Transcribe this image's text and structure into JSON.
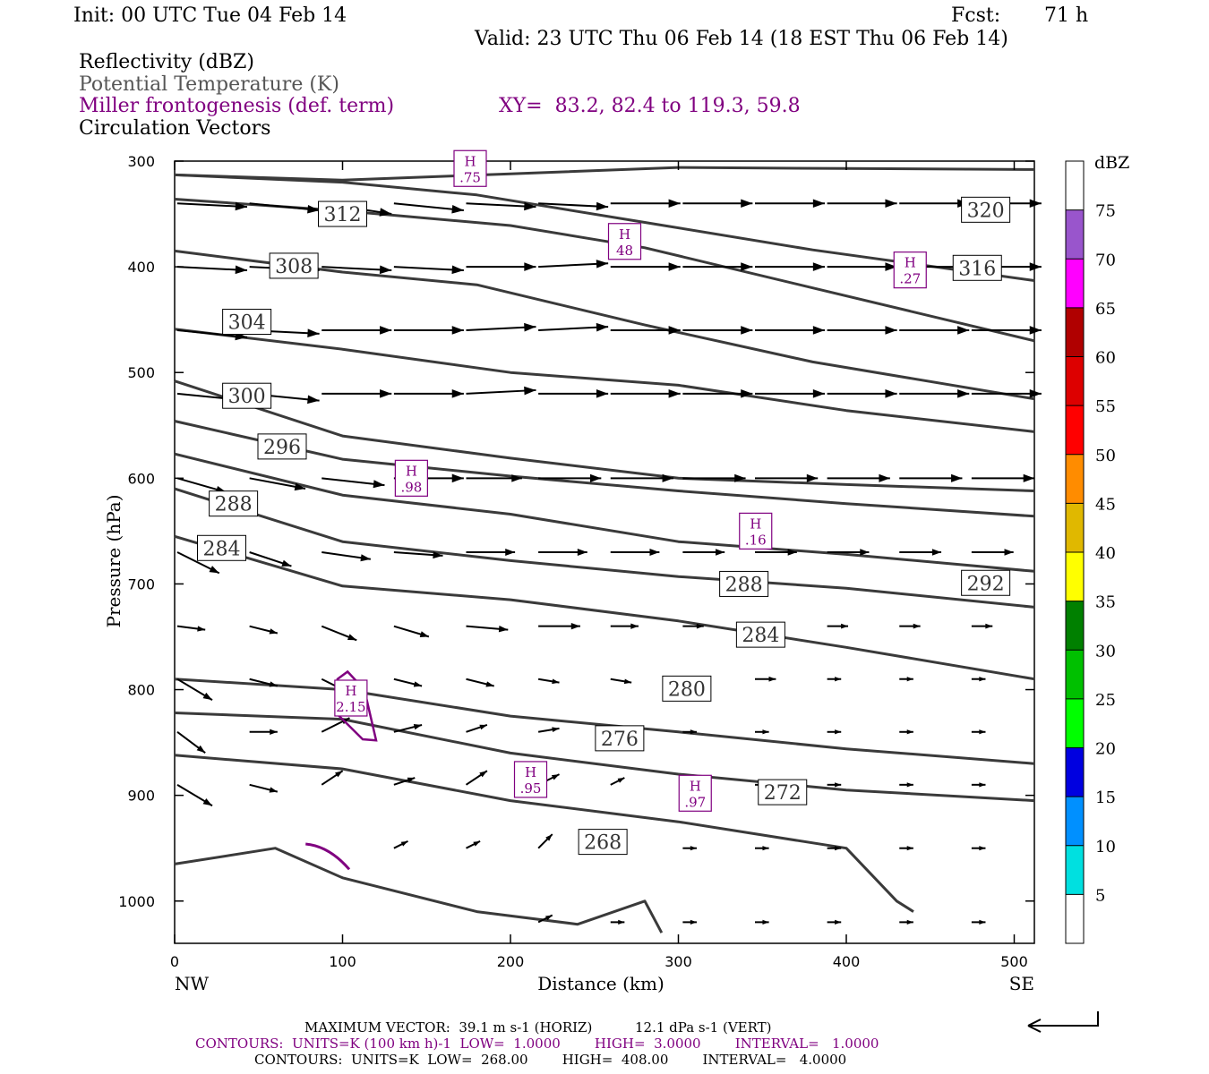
{
  "header": {
    "init": "Init: 00 UTC Tue 04 Feb 14",
    "fcst_label": "Fcst:",
    "fcst_value": "71 h",
    "valid": "Valid: 23 UTC Thu 06 Feb 14 (18 EST Thu 06 Feb 14)"
  },
  "fields": {
    "reflectivity": "Reflectivity (dBZ)",
    "theta": "Potential Temperature (K)",
    "frontogenesis": "Miller frontogenesis (def. term)",
    "xy": "XY=  83.2, 82.4 to 119.3, 59.8",
    "vectors": "Circulation Vectors"
  },
  "chart_data": {
    "type": "cross-section",
    "xlabel": "Distance (km)",
    "ylabel": "Pressure (hPa)",
    "xlim": [
      0,
      512
    ],
    "ylim": [
      1040,
      300
    ],
    "x_ticks": [
      "0",
      "100",
      "200",
      "300",
      "400",
      "500"
    ],
    "y_ticks": [
      "300",
      "400",
      "500",
      "600",
      "700",
      "800",
      "900",
      "1000"
    ],
    "x_end_labels": {
      "left": "NW",
      "right": "SE"
    },
    "colorbar": {
      "title": "dBZ",
      "levels": [
        "5",
        "10",
        "15",
        "20",
        "25",
        "30",
        "35",
        "40",
        "45",
        "50",
        "55",
        "60",
        "65",
        "70",
        "75"
      ],
      "colors": [
        "#ffffff",
        "#00e0e0",
        "#0090ff",
        "#0000e0",
        "#00ff00",
        "#00c000",
        "#008000",
        "#ffff00",
        "#e0b800",
        "#ff8c00",
        "#ff0000",
        "#dd0000",
        "#b00000",
        "#ff00ff",
        "#9955cc",
        "#ffffff"
      ]
    },
    "theta_contours": [
      {
        "label": "320",
        "label_x": 483,
        "label_p": 346,
        "points": [
          [
            0,
            313
          ],
          [
            100,
            318
          ],
          [
            200,
            312
          ],
          [
            300,
            306
          ],
          [
            400,
            307
          ],
          [
            512,
            308
          ]
        ]
      },
      {
        "label": "316",
        "label_x": 478,
        "label_p": 401,
        "points": [
          [
            0,
            313
          ],
          [
            100,
            320
          ],
          [
            180,
            332
          ],
          [
            280,
            358
          ],
          [
            380,
            384
          ],
          [
            512,
            413
          ]
        ]
      },
      {
        "label": "312",
        "label_x": 100,
        "label_p": 350,
        "points": [
          [
            0,
            336
          ],
          [
            100,
            347
          ],
          [
            200,
            361
          ],
          [
            280,
            382
          ],
          [
            380,
            420
          ],
          [
            512,
            470
          ]
        ]
      },
      {
        "label": "308",
        "label_x": 71,
        "label_p": 399,
        "points": [
          [
            0,
            385
          ],
          [
            100,
            405
          ],
          [
            180,
            417
          ],
          [
            280,
            455
          ],
          [
            380,
            490
          ],
          [
            512,
            525
          ]
        ]
      },
      {
        "label": "304",
        "label_x": 43,
        "label_p": 452,
        "points": [
          [
            0,
            459
          ],
          [
            100,
            478
          ],
          [
            200,
            500
          ],
          [
            300,
            512
          ],
          [
            400,
            536
          ],
          [
            512,
            556
          ]
        ]
      },
      {
        "label": "300",
        "label_x": 43,
        "label_p": 522,
        "points": [
          [
            0,
            508
          ],
          [
            100,
            560
          ],
          [
            200,
            581
          ],
          [
            300,
            600
          ],
          [
            400,
            606
          ],
          [
            512,
            612
          ]
        ]
      },
      {
        "label": "296",
        "label_x": 64,
        "label_p": 570,
        "points": [
          [
            0,
            546
          ],
          [
            100,
            582
          ],
          [
            200,
            598
          ],
          [
            300,
            612
          ],
          [
            400,
            624
          ],
          [
            512,
            636
          ]
        ]
      },
      {
        "label": "288",
        "label_x": 35,
        "label_p": 624,
        "points": [
          [
            0,
            577
          ],
          [
            100,
            616
          ],
          [
            200,
            634
          ],
          [
            300,
            660
          ],
          [
            400,
            672
          ],
          [
            512,
            688
          ]
        ]
      },
      {
        "label": "284",
        "label_x": 28,
        "label_p": 666,
        "points": [
          [
            0,
            610
          ],
          [
            100,
            660
          ],
          [
            200,
            678
          ],
          [
            300,
            693
          ],
          [
            400,
            704
          ],
          [
            512,
            722
          ]
        ]
      },
      {
        "label": "292",
        "label_x": 483,
        "label_p": 699,
        "points": [
          [
            0,
            655
          ],
          [
            100,
            702
          ],
          [
            200,
            715
          ],
          [
            300,
            735
          ],
          [
            400,
            760
          ],
          [
            512,
            790
          ]
        ]
      },
      {
        "label": "288",
        "label_x": 339,
        "label_p": 700,
        "points": []
      },
      {
        "label": "284",
        "label_x": 349,
        "label_p": 748,
        "points": []
      },
      {
        "label": "280",
        "label_x": 305,
        "label_p": 799,
        "points": [
          [
            0,
            790
          ],
          [
            100,
            800
          ],
          [
            200,
            825
          ],
          [
            300,
            840
          ],
          [
            400,
            856
          ],
          [
            512,
            870
          ]
        ]
      },
      {
        "label": "276",
        "label_x": 265,
        "label_p": 846,
        "points": [
          [
            0,
            822
          ],
          [
            100,
            828
          ],
          [
            200,
            860
          ],
          [
            300,
            880
          ],
          [
            400,
            895
          ],
          [
            512,
            905
          ]
        ]
      },
      {
        "label": "272",
        "label_x": 362,
        "label_p": 897,
        "points": [
          [
            0,
            862
          ],
          [
            100,
            875
          ],
          [
            200,
            905
          ],
          [
            300,
            925
          ],
          [
            400,
            950
          ],
          [
            430,
            1000
          ],
          [
            440,
            1010
          ]
        ]
      },
      {
        "label": "268",
        "label_x": 255,
        "label_p": 944,
        "points": [
          [
            0,
            965
          ],
          [
            60,
            950
          ],
          [
            100,
            978
          ],
          [
            180,
            1010
          ],
          [
            240,
            1022
          ],
          [
            280,
            1000
          ],
          [
            290,
            1030
          ]
        ]
      }
    ],
    "frontogenesis_maxima": [
      {
        "label": "H",
        "value": ".75",
        "x": 176,
        "p": 307
      },
      {
        "label": "H",
        "value": "48",
        "x": 268,
        "p": 376
      },
      {
        "label": "H",
        "value": ".27",
        "x": 438,
        "p": 403
      },
      {
        "label": "H",
        "value": ".98",
        "x": 141,
        "p": 600
      },
      {
        "label": "H",
        "value": ".16",
        "x": 346,
        "p": 650
      },
      {
        "label": "H",
        "value": "2.15",
        "x": 105,
        "p": 808
      },
      {
        "label": "H",
        "value": ".95",
        "x": 212,
        "p": 885
      },
      {
        "label": "H",
        "value": ".97",
        "x": 310,
        "p": 898
      }
    ],
    "circulation_vectors": {
      "x": [
        0,
        43,
        86,
        129,
        172,
        215,
        258,
        301,
        344,
        387,
        430,
        473
      ],
      "p": [
        340,
        400,
        460,
        520,
        600,
        670,
        740,
        790,
        840,
        890,
        950,
        1020
      ],
      "u": [
        [
          1.0,
          1.0,
          1.0,
          1.0,
          1.0,
          1.0,
          1.0,
          1.0,
          1.0,
          1.0,
          1.0,
          1.0
        ],
        [
          1.0,
          1.0,
          1.0,
          1.0,
          1.0,
          1.0,
          1.0,
          1.0,
          1.0,
          1.0,
          1.0,
          1.0
        ],
        [
          1.0,
          1.0,
          1.0,
          1.0,
          1.0,
          1.0,
          1.0,
          1.0,
          1.0,
          1.0,
          1.0,
          1.0
        ],
        [
          1.0,
          1.0,
          1.0,
          1.0,
          1.0,
          1.0,
          1.0,
          1.0,
          1.0,
          1.0,
          1.0,
          1.0
        ],
        [
          0.7,
          0.8,
          0.9,
          1.0,
          0.8,
          0.9,
          0.9,
          0.9,
          0.9,
          0.9,
          0.9,
          0.9
        ],
        [
          0.6,
          0.6,
          0.7,
          0.7,
          0.7,
          0.7,
          0.7,
          0.6,
          0.6,
          0.6,
          0.6,
          0.6
        ],
        [
          0.4,
          0.4,
          0.5,
          0.5,
          0.6,
          0.6,
          0.4,
          0.3,
          0.3,
          0.3,
          0.3,
          0.3
        ],
        [
          0.5,
          0.4,
          0.4,
          0.4,
          0.4,
          0.3,
          0.3,
          0.3,
          0.3,
          0.2,
          0.2,
          0.2
        ],
        [
          0.4,
          0.4,
          0.4,
          0.4,
          0.3,
          0.3,
          0.3,
          0.2,
          0.2,
          0.2,
          0.2,
          0.2
        ],
        [
          0.5,
          0.4,
          0.3,
          0.3,
          0.3,
          0.3,
          0.2,
          0.2,
          0.2,
          0.2,
          0.2,
          0.2
        ],
        [
          0.0,
          0.0,
          0.0,
          0.2,
          0.2,
          0.2,
          0.2,
          0.2,
          0.2,
          0.2,
          0.2,
          0.2
        ],
        [
          0.0,
          0.0,
          0.0,
          0.0,
          0.0,
          0.2,
          0.2,
          0.2,
          0.2,
          0.2,
          0.2,
          0.2
        ]
      ],
      "w": [
        [
          0.05,
          0.1,
          0.15,
          0.1,
          0.05,
          0.05,
          0.0,
          0.0,
          0.0,
          0.0,
          0.0,
          0.0
        ],
        [
          0.05,
          0.05,
          0.05,
          0.05,
          0.0,
          -0.05,
          0.0,
          0.0,
          0.0,
          0.0,
          0.0,
          0.0
        ],
        [
          0.1,
          0.05,
          0.0,
          0.0,
          -0.05,
          -0.05,
          0.0,
          0.0,
          0.0,
          0.0,
          0.0,
          0.0
        ],
        [
          0.1,
          0.1,
          0.0,
          0.0,
          -0.05,
          0.0,
          0.0,
          0.0,
          0.0,
          0.0,
          0.0,
          0.0
        ],
        [
          0.2,
          0.15,
          0.1,
          0.0,
          0.0,
          0.0,
          0.0,
          0.0,
          0.0,
          0.0,
          0.0,
          0.0
        ],
        [
          0.3,
          0.2,
          0.1,
          0.05,
          0.0,
          0.0,
          0.0,
          0.0,
          0.0,
          0.0,
          0.0,
          0.0
        ],
        [
          0.05,
          0.1,
          0.2,
          0.15,
          0.05,
          0.0,
          0.0,
          0.0,
          0.0,
          0.0,
          0.0,
          0.0
        ],
        [
          0.3,
          0.1,
          0.2,
          0.1,
          0.1,
          0.05,
          0.05,
          0.0,
          0.0,
          0.0,
          0.0,
          0.0
        ],
        [
          0.3,
          0.0,
          -0.2,
          -0.1,
          -0.1,
          -0.05,
          0.0,
          0.0,
          0.0,
          0.0,
          0.0,
          0.0
        ],
        [
          0.3,
          0.1,
          -0.2,
          -0.1,
          -0.2,
          -0.15,
          -0.1,
          0.0,
          0.0,
          0.0,
          0.0,
          0.0
        ],
        [
          0.0,
          0.0,
          0.0,
          -0.1,
          -0.1,
          -0.2,
          -0.1,
          0.0,
          0.0,
          0.0,
          0.0,
          0.0
        ],
        [
          0.0,
          0.0,
          0.0,
          0.0,
          0.0,
          -0.1,
          0.0,
          0.0,
          0.0,
          0.0,
          0.0,
          0.0
        ]
      ]
    },
    "reference_vector_label": "MAXIMUM VECTOR"
  },
  "footer": {
    "max_vector": "MAXIMUM VECTOR:  39.1 m s-1 (HORIZ)          12.1 dPa s-1 (VERT)",
    "contours_purple": "CONTOURS:  UNITS=K (100 km h)-1  LOW=  1.0000        HIGH=  3.0000        INTERVAL=   1.0000",
    "contours_black": "CONTOURS:  UNITS=K  LOW=  268.00        HIGH=  408.00        INTERVAL=   4.0000"
  },
  "colors": {
    "theta": "#3a3a3a",
    "frontogenesis": "#800080",
    "vectors": "#000000"
  }
}
